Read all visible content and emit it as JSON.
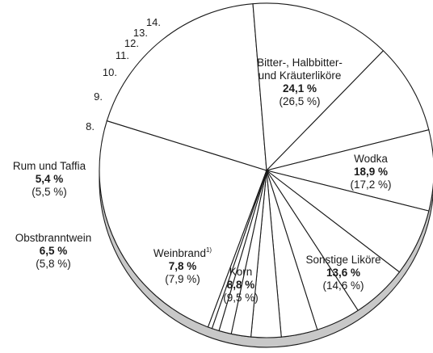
{
  "chart_data": {
    "type": "pie",
    "colors": {
      "slice_fill": "#ffffff",
      "stroke": "#1a1a1a",
      "side_fill": "#c8c8c8"
    },
    "slices": [
      {
        "id": "bitter",
        "lines": [
          "Bitter-, Halbbitter-",
          "und Kräuterliköre"
        ],
        "value_label": "24,1 %",
        "prev_label": "(26,5 %)",
        "value": 24.1,
        "prev": 26.5
      },
      {
        "id": "wodka",
        "lines": [
          "Wodka"
        ],
        "value_label": "18,9 %",
        "prev_label": "(17,2 %)",
        "value": 18.9,
        "prev": 17.2
      },
      {
        "id": "sonstige",
        "lines": [
          "Sonstige Liköre"
        ],
        "value_label": "13,6 %",
        "prev_label": "(14,6 %)",
        "value": 13.6,
        "prev": 14.6
      },
      {
        "id": "korn",
        "lines": [
          "Korn"
        ],
        "value_label": "8,8 %",
        "prev_label": "(9,5 %)",
        "value": 8.8,
        "prev": 9.5
      },
      {
        "id": "weinbrand",
        "lines": [
          "Weinbrand"
        ],
        "superscript": "1)",
        "value_label": "7,8 %",
        "prev_label": "(7,9 %)",
        "value": 7.8,
        "prev": 7.9
      },
      {
        "id": "obst",
        "lines": [
          "Obstbranntwein"
        ],
        "value_label": "6,5 %",
        "prev_label": "(5,8 %)",
        "value": 6.5,
        "prev": 5.8
      },
      {
        "id": "rum",
        "lines": [
          "Rum und Taffia"
        ],
        "value_label": "5,4 %",
        "prev_label": "(5,5 %)",
        "value": 5.4,
        "prev": 5.5
      },
      {
        "id": "s8",
        "number_label": "8.",
        "value": 4.3
      },
      {
        "id": "s9",
        "number_label": "9.",
        "value": 3.5
      },
      {
        "id": "s10",
        "number_label": "10.",
        "value": 2.9
      },
      {
        "id": "s11",
        "number_label": "11.",
        "value": 1.9
      },
      {
        "id": "s12",
        "number_label": "12.",
        "value": 1.2
      },
      {
        "id": "s13",
        "number_label": "13.",
        "value": 0.7
      },
      {
        "id": "s14",
        "number_label": "14.",
        "value": 0.4
      }
    ]
  }
}
